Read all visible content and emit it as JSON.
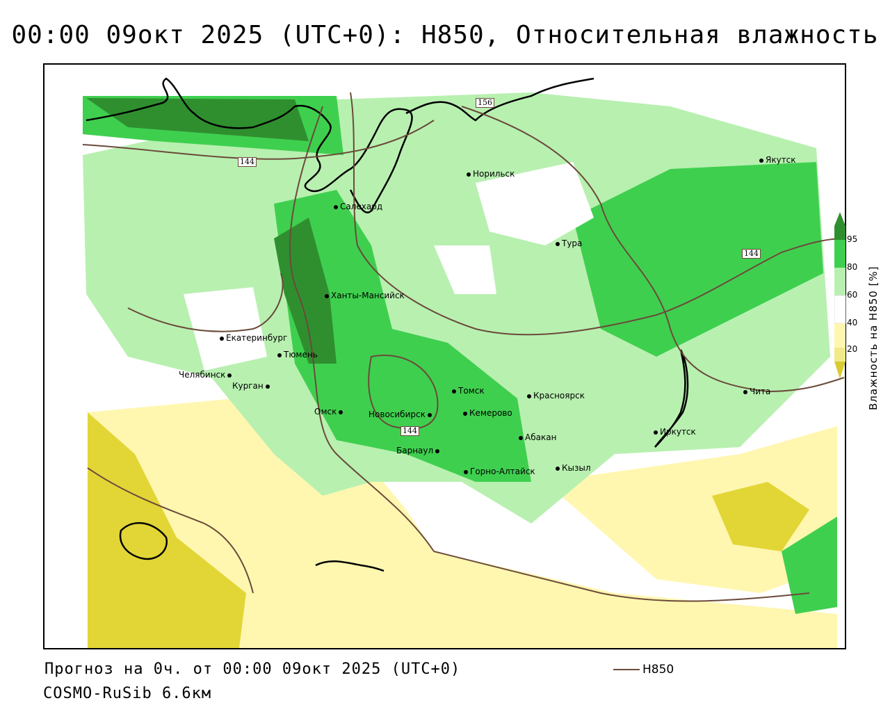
{
  "title": "00:00 09окт 2025 (UTC+0): H850, Относительная влажность",
  "map": {
    "cities": [
      {
        "name": "Норильск"
      },
      {
        "name": "Якутск"
      },
      {
        "name": "Салехард"
      },
      {
        "name": "Тура"
      },
      {
        "name": "Ханты-Мансийск"
      },
      {
        "name": "Екатеринбург"
      },
      {
        "name": "Тюмень"
      },
      {
        "name": "Челябинск"
      },
      {
        "name": "Курган"
      },
      {
        "name": "Омск"
      },
      {
        "name": "Новосибирск"
      },
      {
        "name": "Томск"
      },
      {
        "name": "Кемерово"
      },
      {
        "name": "Красноярск"
      },
      {
        "name": "Абакан"
      },
      {
        "name": "Барнаул"
      },
      {
        "name": "Горно-Алтайск"
      },
      {
        "name": "Кызыл"
      },
      {
        "name": "Иркутск"
      },
      {
        "name": "Чита"
      }
    ],
    "contour_labels": [
      "156",
      "144",
      "144",
      "144"
    ],
    "contour_color": "#6b4a3a"
  },
  "legend": {
    "title": "Влажность на H850 [%]",
    "ticks": [
      "95",
      "80",
      "60",
      "40",
      "20"
    ],
    "colors": {
      "c95": "#2f8f2f",
      "c80": "#3fcf4f",
      "c60": "#b8f0b0",
      "c50": "#ffffff",
      "c40": "#fff7b0",
      "c20": "#f2ea88",
      "c0": "#d9cc30"
    }
  },
  "footer": {
    "forecast": "Прогноз на 0ч. от 00:00 09окт 2025 (UTC+0)",
    "model": "COSMO-RuSib 6.6км",
    "line_legend": "H850"
  }
}
